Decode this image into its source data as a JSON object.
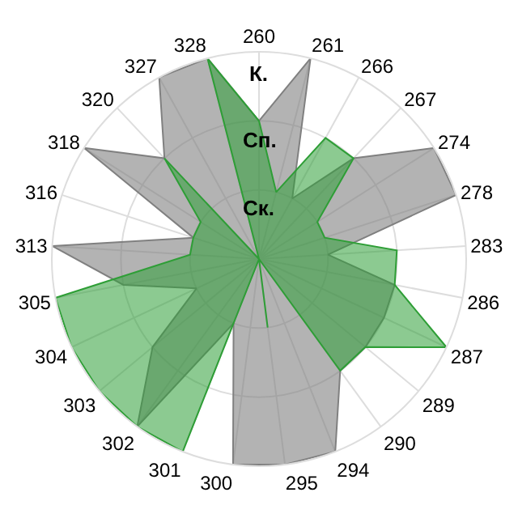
{
  "chart_data": {
    "type": "radar",
    "categories": [
      "260",
      "261",
      "266",
      "267",
      "274",
      "278",
      "283",
      "286",
      "287",
      "289",
      "290",
      "294",
      "295",
      "300",
      "301",
      "302",
      "303",
      "304",
      "305",
      "313",
      "316",
      "318",
      "320",
      "327",
      "328"
    ],
    "series": [
      {
        "color": "#808080",
        "values": [
          2,
          3,
          1,
          2,
          3,
          3,
          1,
          2,
          2,
          2,
          2,
          3,
          3,
          3,
          1,
          3,
          2,
          1,
          2,
          3,
          1,
          3,
          2,
          3,
          3
        ]
      },
      {
        "color": "#2e9e36",
        "values": [
          2,
          1,
          2,
          2,
          1,
          1,
          2,
          2,
          3,
          2,
          2,
          0,
          1,
          0,
          3,
          3,
          3,
          3,
          3,
          1,
          1,
          1,
          2,
          0,
          3
        ]
      }
    ],
    "ylim": [
      0,
      3
    ],
    "yticks": [
      {
        "value": 1,
        "label": "Ск."
      },
      {
        "value": 2,
        "label": "Сп."
      },
      {
        "value": 3,
        "label": "К."
      }
    ],
    "grid": true,
    "marker": "none"
  }
}
